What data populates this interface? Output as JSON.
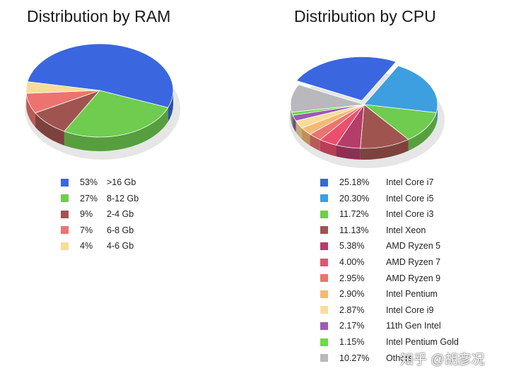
{
  "watermark": "知乎 @胡彦况",
  "chart_data": [
    {
      "type": "pie",
      "title": "Distribution by RAM",
      "legend_position": "bottom",
      "slices": [
        {
          "label": ">16 Gb",
          "display": "53%",
          "value": 53,
          "color": "#3a66e0"
        },
        {
          "label": "8-12 Gb",
          "display": "27%",
          "value": 27,
          "color": "#6fcc4f"
        },
        {
          "label": "2-4 Gb",
          "display": "9%",
          "value": 9,
          "color": "#a0544f"
        },
        {
          "label": "6-8 Gb",
          "display": "7%",
          "value": 7,
          "color": "#ec7370"
        },
        {
          "label": "4-6 Gb",
          "display": "4%",
          "value": 4,
          "color": "#f9dc9a"
        }
      ]
    },
    {
      "type": "pie",
      "title": "Distribution by CPU",
      "legend_position": "bottom",
      "exploded": "Intel Core i7",
      "slices": [
        {
          "label": "Intel Core i7",
          "display": "25.18%",
          "value": 25.18,
          "color": "#3a66e0"
        },
        {
          "label": "Intel Core i5",
          "display": "20.30%",
          "value": 20.3,
          "color": "#3d9fe0"
        },
        {
          "label": "Intel Core i3",
          "display": "11.72%",
          "value": 11.72,
          "color": "#6fcc4f"
        },
        {
          "label": "Intel Xeon",
          "display": "11.13%",
          "value": 11.13,
          "color": "#a0544f"
        },
        {
          "label": "AMD Ryzen 5",
          "display": "5.38%",
          "value": 5.38,
          "color": "#b53d6a"
        },
        {
          "label": "AMD Ryzen 7",
          "display": "4.00%",
          "value": 4.0,
          "color": "#ec4f6e"
        },
        {
          "label": "AMD Ryzen 9",
          "display": "2.95%",
          "value": 2.95,
          "color": "#ec7370"
        },
        {
          "label": "Intel Pentium",
          "display": "2.90%",
          "value": 2.9,
          "color": "#f5b975"
        },
        {
          "label": "Intel Core i9",
          "display": "2.87%",
          "value": 2.87,
          "color": "#f9dc9a"
        },
        {
          "label": "11th Gen Intel",
          "display": "2.17%",
          "value": 2.17,
          "color": "#9b5bb5"
        },
        {
          "label": "Intel Pentium Gold",
          "display": "1.15%",
          "value": 1.15,
          "color": "#6fd84a"
        },
        {
          "label": "Others",
          "display": "10.27%",
          "value": 10.27,
          "color": "#b8b8bd"
        }
      ]
    }
  ]
}
